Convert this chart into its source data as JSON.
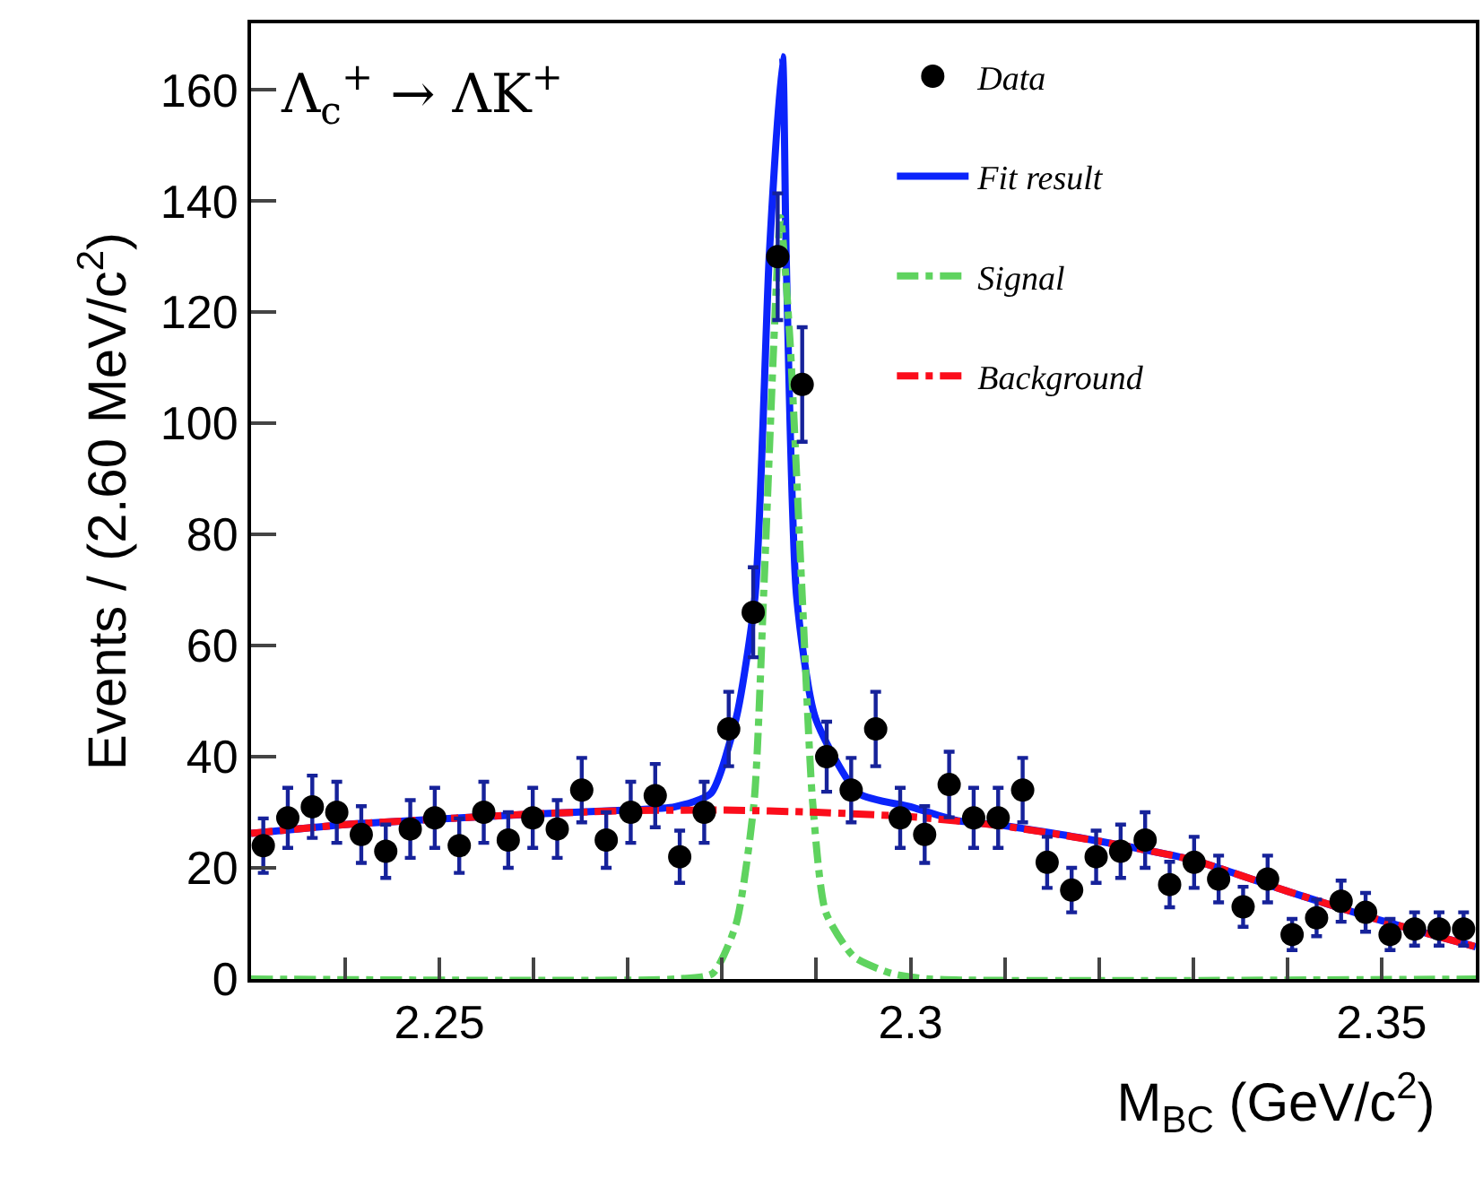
{
  "chart_data": {
    "type": "scatter",
    "xlabel": "M$_{BC}$ (GeV/c$^{2}$)",
    "ylabel": "Events / (2.60 MeV/c$^{2}$)",
    "annotations": [
      "Λ$_{c}$$^{+}$ → ΛK$^{+}$"
    ],
    "xlim": [
      2.23,
      2.36
    ],
    "xticks": [
      {
        "value": 2.24,
        "label": null
      },
      2.25,
      {
        "value": 2.26,
        "label": null
      },
      {
        "value": 2.27,
        "label": null
      },
      {
        "value": 2.28,
        "label": null
      },
      {
        "value": 2.29,
        "label": null
      },
      {
        "value": 2.3,
        "label": "2.3"
      },
      {
        "value": 2.31,
        "label": null
      },
      {
        "value": 2.32,
        "label": null
      },
      {
        "value": 2.33,
        "label": null
      },
      {
        "value": 2.34,
        "label": null
      },
      2.35
    ],
    "ylim": [
      0,
      172
    ],
    "yticks": [
      0,
      20,
      40,
      60,
      80,
      100,
      120,
      140,
      160
    ],
    "grid": false,
    "legend": "top right",
    "series": [
      {
        "name": "Data",
        "marker": "circle",
        "color": "#000000",
        "x": [
          2.2313,
          2.2339,
          2.2365,
          2.2391,
          2.2417,
          2.2443,
          2.2469,
          2.2495,
          2.2521,
          2.2547,
          2.2573,
          2.2599,
          2.2625,
          2.2651,
          2.2677,
          2.2703,
          2.2729,
          2.2755,
          2.2781,
          2.2807,
          2.2833,
          2.2859,
          2.2885,
          2.2911,
          2.2937,
          2.2963,
          2.2989,
          2.3015,
          2.3041,
          2.3067,
          2.3093,
          2.3119,
          2.3145,
          2.3171,
          2.3197,
          2.3223,
          2.3249,
          2.3275,
          2.3301,
          2.3327,
          2.3353,
          2.3379,
          2.3405,
          2.3431,
          2.3457,
          2.3483,
          2.3509,
          2.3535,
          2.3561,
          2.3587
        ],
        "values": [
          24,
          29,
          31,
          30,
          26,
          23,
          27,
          29,
          24,
          30,
          25,
          29,
          27,
          34,
          25,
          30,
          33,
          22,
          30,
          45,
          66,
          130,
          107,
          40,
          34,
          45,
          29,
          26,
          35,
          29,
          29,
          34,
          21,
          16,
          22,
          23,
          25,
          17,
          21,
          18,
          13,
          18,
          8,
          11,
          14,
          12,
          8,
          9,
          9,
          9
        ],
        "errors": [
          4.9,
          5.4,
          5.6,
          5.5,
          5.1,
          4.8,
          5.2,
          5.4,
          4.9,
          5.5,
          5,
          5.4,
          5.2,
          5.8,
          5,
          5.5,
          5.7,
          4.7,
          5.5,
          6.7,
          8.1,
          11.4,
          10.3,
          6.3,
          5.8,
          6.7,
          5.4,
          5.1,
          5.9,
          5.4,
          5.4,
          5.8,
          4.6,
          4,
          4.7,
          4.8,
          5,
          4.1,
          4.6,
          4.2,
          3.6,
          4.2,
          2.8,
          3.3,
          3.7,
          3.5,
          2.8,
          3,
          3,
          3
        ]
      },
      {
        "name": "Fit result",
        "type": "line",
        "line_style": "solid",
        "color": "#0b24fb",
        "x": [
          2.23,
          2.24,
          2.25,
          2.26,
          2.27,
          2.275,
          2.2788,
          2.2815,
          2.2835,
          2.285,
          2.2864,
          2.2868,
          2.2879,
          2.2899,
          2.2945,
          2.3,
          2.305,
          2.31,
          2.32,
          2.33,
          2.34,
          2.35,
          2.36
        ],
        "values": [
          26.2,
          27.8,
          28.8,
          29.7,
          30.4,
          31,
          33.4,
          47,
          69,
          130,
          166,
          130,
          69,
          47,
          33.4,
          31,
          28.5,
          27.6,
          24.8,
          21.4,
          15.8,
          10.5,
          5.8
        ]
      },
      {
        "name": "Signal",
        "type": "line",
        "line_style": "dashdot",
        "color": "#5fd35f",
        "x": [
          2.23,
          2.275,
          2.279,
          2.2815,
          2.2834,
          2.2844,
          2.2855,
          2.2862,
          2.2872,
          2.2885,
          2.2896,
          2.291,
          2.294,
          2.298,
          2.302,
          2.36
        ],
        "values": [
          0,
          0,
          1,
          10,
          32,
          69,
          115,
          137,
          115,
          69,
          32,
          12,
          4,
          1,
          0,
          0
        ]
      },
      {
        "name": "Background",
        "type": "line",
        "line_style": "dashdot",
        "color": "#fb0d1b",
        "x": [
          2.23,
          2.24,
          2.25,
          2.26,
          2.27,
          2.28,
          2.29,
          2.3,
          2.31,
          2.32,
          2.33,
          2.34,
          2.35,
          2.36
        ],
        "values": [
          26.2,
          27.8,
          28.8,
          29.7,
          30.3,
          30.4,
          30,
          29.2,
          27.5,
          24.8,
          21.4,
          15.8,
          10.5,
          5.8
        ]
      }
    ]
  }
}
